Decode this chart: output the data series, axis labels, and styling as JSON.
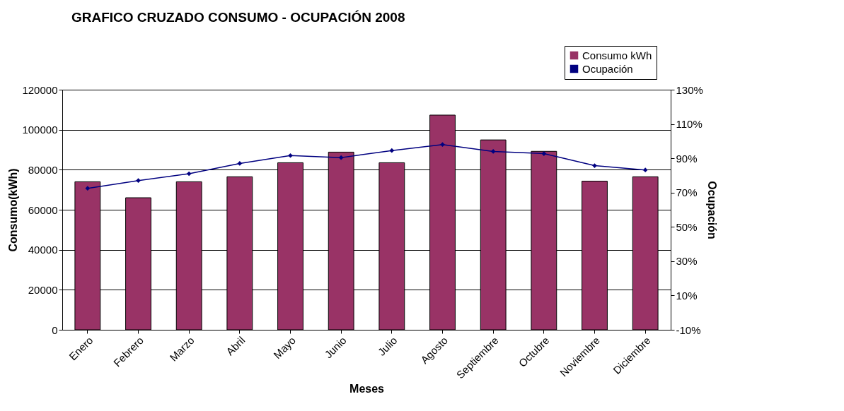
{
  "chart_data": {
    "type": "bar",
    "title": "GRAFICO CRUZADO CONSUMO - OCUPACIÓN 2008",
    "xlabel": "Meses",
    "ylabel": "Consumo(kWh)",
    "y2label": "Ocupación",
    "categories": [
      "Enero",
      "Febrero",
      "Marzo",
      "Abril",
      "Mayo",
      "Junio",
      "Julio",
      "Agosto",
      "Septiembre",
      "Octubre",
      "Noviembre",
      "Diciembre"
    ],
    "series": [
      {
        "name": "Consumo kWh",
        "color": "#993366",
        "values": [
          74000,
          66000,
          74000,
          76500,
          83500,
          88800,
          83500,
          107300,
          94900,
          89200,
          74300,
          76500
        ]
      },
      {
        "name": "Ocupación",
        "type": "line",
        "axis": "y2",
        "color": "#000080",
        "marker": "diamond",
        "values": [
          72.5,
          77,
          81,
          87,
          91.6,
          90.4,
          94.5,
          98,
          94,
          92.7,
          85.7,
          83.2
        ]
      }
    ],
    "ylim": [
      0,
      120000
    ],
    "yticks": [
      0,
      20000,
      40000,
      60000,
      80000,
      100000,
      120000
    ],
    "y2lim": [
      -10,
      130
    ],
    "y2ticks": [
      {
        "value": -10,
        "label": "-10%"
      },
      {
        "value": 10,
        "label": "10%"
      },
      {
        "value": 30,
        "label": "30%"
      },
      {
        "value": 50,
        "label": "50%"
      },
      {
        "value": 70,
        "label": "70%"
      },
      {
        "value": 90,
        "label": "90%"
      },
      {
        "value": 110,
        "label": "110%"
      },
      {
        "value": 130,
        "label": "130%"
      }
    ],
    "grid": "y",
    "legend": "top right"
  }
}
